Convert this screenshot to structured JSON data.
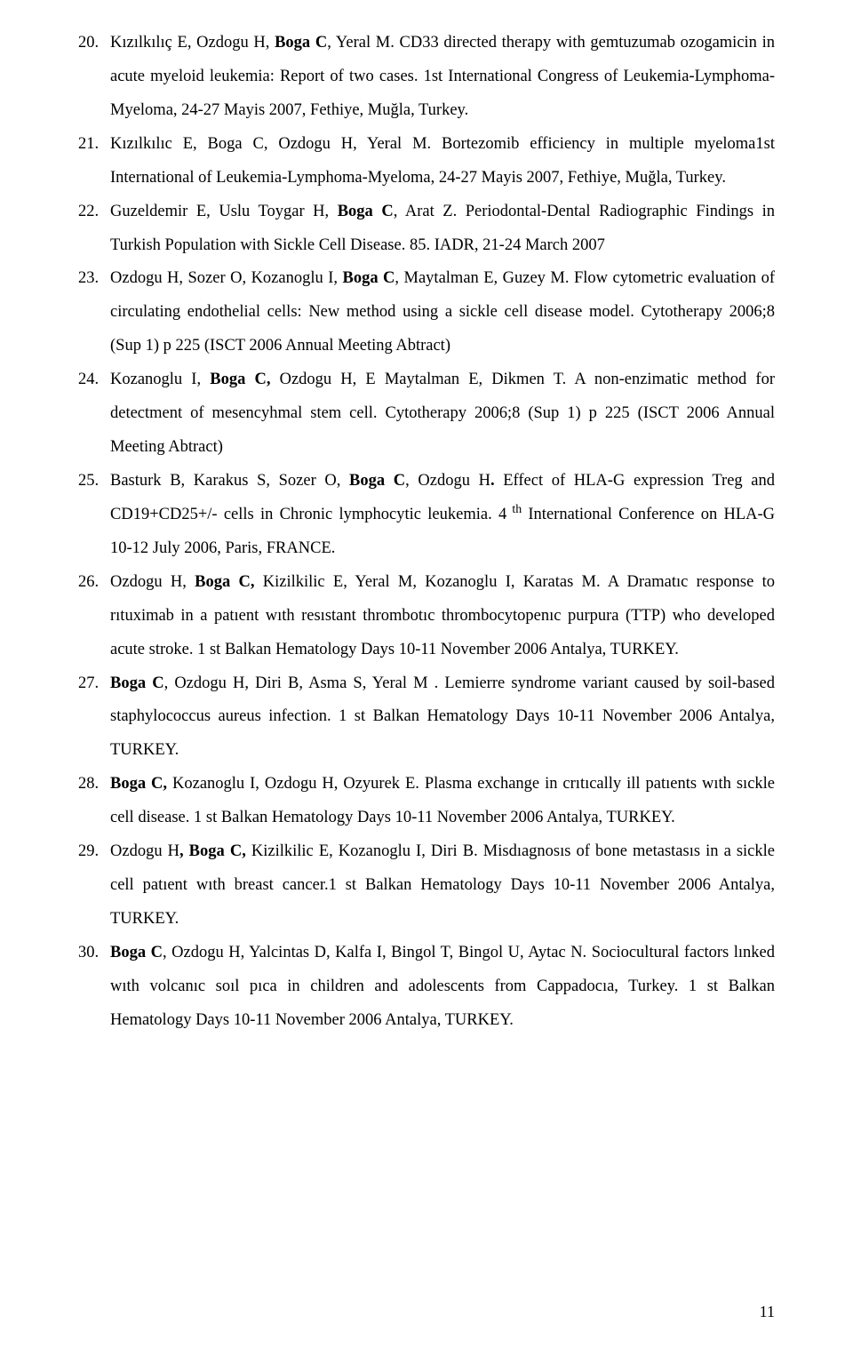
{
  "references": [
    {
      "n": "20.",
      "segs": [
        {
          "t": "Kızılkılıç E, Ozdogu H, "
        },
        {
          "t": "Boga C",
          "b": 1
        },
        {
          "t": ", Yeral M. CD33 directed therapy with gemtuzumab ozogamicin in acute myeloid leukemia: Report of two cases. 1st International Congress of Leukemia-Lymphoma-Myeloma, 24-27 Mayis 2007, Fethiye, Muğla, Turkey."
        }
      ]
    },
    {
      "n": "21.",
      "segs": [
        {
          "t": "Kızılkılıc E, Boga C, Ozdogu H, Yeral M. Bortezomib efficiency in multiple myeloma1st International of Leukemia-Lymphoma-Myeloma, 24-27 Mayis 2007, Fethiye, Muğla, Turkey."
        }
      ]
    },
    {
      "n": "22.",
      "segs": [
        {
          "t": "Guzeldemir E, Uslu Toygar H, "
        },
        {
          "t": "Boga C",
          "b": 1
        },
        {
          "t": ", Arat Z. Periodontal-Dental Radiographic Findings in Turkish Population with Sickle Cell Disease. 85. IADR, 21-24 March 2007"
        }
      ]
    },
    {
      "n": "23.",
      "segs": [
        {
          "t": "Ozdogu H, Sozer O, Kozanoglu I, "
        },
        {
          "t": "Boga C",
          "b": 1
        },
        {
          "t": ", Maytalman E, Guzey M. Flow cytometric evaluation of circulating endothelial cells: New method using a sickle cell disease model. Cytotherapy 2006;8 (Sup 1) p 225   (ISCT 2006 Annual Meeting Abtract)"
        }
      ]
    },
    {
      "n": "24.",
      "segs": [
        {
          "t": "Kozanoglu I, "
        },
        {
          "t": "Boga C,",
          "b": 1
        },
        {
          "t": " Ozdogu H, E Maytalman E, Dikmen T. A non-enzimatic method for detectment of mesencyhmal stem cell. Cytotherapy  2006;8 (Sup 1) p 225   (ISCT 2006 Annual Meeting Abtract)"
        }
      ]
    },
    {
      "n": "25.",
      "segs": [
        {
          "t": "Basturk B, Karakus S, Sozer O, "
        },
        {
          "t": "Boga C",
          "b": 1
        },
        {
          "t": ", Ozdogu H"
        },
        {
          "t": ".",
          "b": 1
        },
        {
          "t": " Effect of HLA-G expression  Treg and CD19+CD25+/-  cells in Chronic lymphocytic leukemia. 4"
        },
        {
          "t": " th",
          "sup": 1
        },
        {
          "t": " International Conference on HLA-G 10-12 July  2006, Paris, FRANCE."
        }
      ]
    },
    {
      "n": "26.",
      "segs": [
        {
          "t": "Ozdogu H, "
        },
        {
          "t": "Boga  C,",
          "b": 1
        },
        {
          "t": "  Kizilkilic E, Yeral M, Kozanoglu I, Karatas M. A Dramatıc response to rıtuximab in a patıent wıth resıstant thrombotıc thrombocytopenıc purpura (TTP) who developed acute stroke. 1 st Balkan Hematology Days 10-11 November 2006 Antalya, TURKEY."
        }
      ]
    },
    {
      "n": "27.",
      "segs": [
        {
          "t": "Boga  C",
          "b": 1
        },
        {
          "t": ",  Ozdogu H,  Diri B,  Asma S, Yeral M . Lemierre syndrome variant caused by soil-based staphylococcus aureus infection. 1 st Balkan Hematology Days 10-11 November 2006 Antalya, TURKEY."
        }
      ]
    },
    {
      "n": "28.",
      "segs": [
        {
          "t": "Boga C,",
          "b": 1
        },
        {
          "t": "  Kozanoglu I,  Ozdogu H,  Ozyurek E. Plasma exchange in crıtıcally ill patıents wıth sıckle cell disease. 1 st Balkan Hematology Days 10-11 November 2006 Antalya, TURKEY."
        }
      ]
    },
    {
      "n": "29.",
      "segs": [
        {
          "t": "Ozdogu H"
        },
        {
          "t": ", Boga C,",
          "b": 1
        },
        {
          "t": " Kizilkilic E,  Kozanoglu I, Diri B.  Misdıagnosıs of bone metastasıs in a sickle cell patıent wıth breast cancer.1 st Balkan Hematology Days 10-11 November 2006 Antalya, TURKEY."
        }
      ]
    },
    {
      "n": "30.",
      "segs": [
        {
          "t": "Boga C",
          "b": 1
        },
        {
          "t": ", Ozdogu H,  Yalcintas D, Kalfa  I, Bingol T,  Bingol U, Aytac N. Sociocultural factors lınked wıth volcanıc soıl pıca in children and adolescents from Cappadocıa, Turkey. 1 st Balkan Hematology Days 10-11 November 2006 Antalya, TURKEY."
        }
      ]
    }
  ],
  "pageNumber": "11"
}
